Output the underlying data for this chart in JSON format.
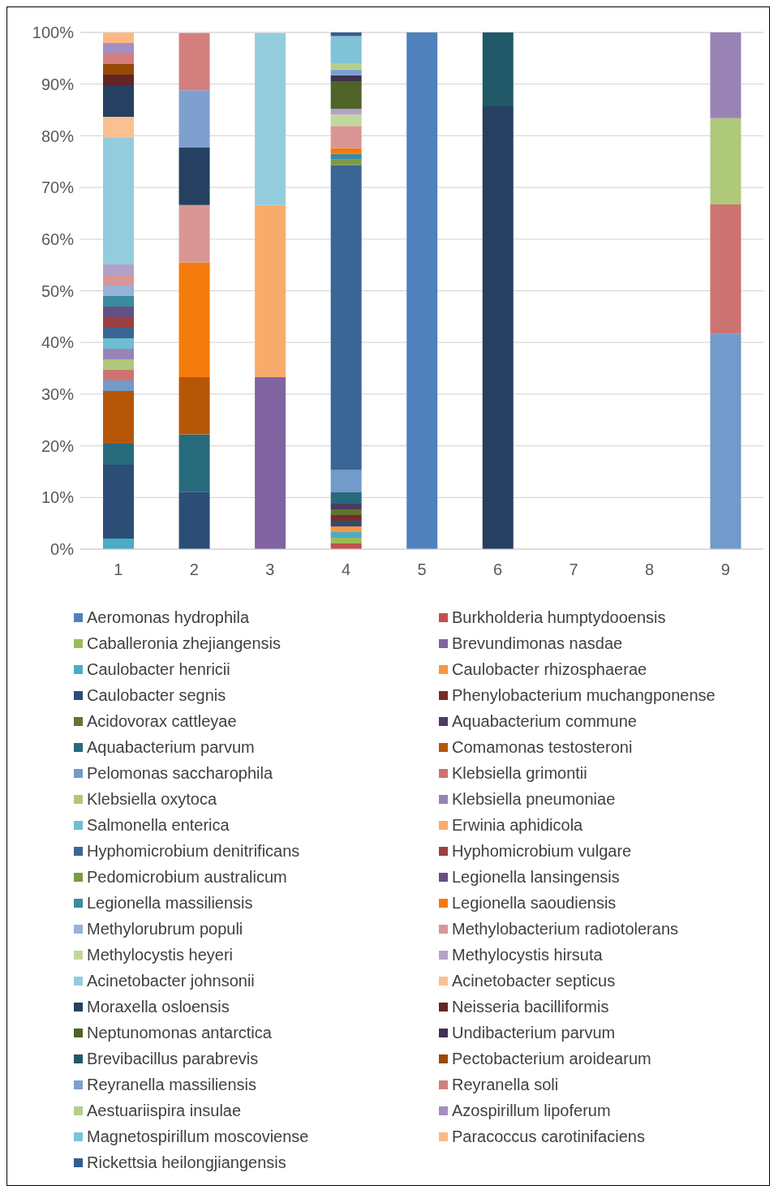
{
  "chart_data": {
    "type": "bar",
    "stacked": true,
    "categories": [
      "1",
      "2",
      "3",
      "4",
      "5",
      "6",
      "7",
      "8",
      "9"
    ],
    "ylim": [
      0,
      100
    ],
    "yticks": [
      {
        "value": 0,
        "label": "0%"
      },
      {
        "value": 10,
        "label": "10%"
      },
      {
        "value": 20,
        "label": "20%"
      },
      {
        "value": 30,
        "label": "30%"
      },
      {
        "value": 40,
        "label": "40%"
      },
      {
        "value": 50,
        "label": "50%"
      },
      {
        "value": 60,
        "label": "60%"
      },
      {
        "value": 70,
        "label": "70%"
      },
      {
        "value": 80,
        "label": "80%"
      },
      {
        "value": 90,
        "label": "90%"
      },
      {
        "value": 100,
        "label": "100%"
      }
    ],
    "grid": "y",
    "legend": "bottom",
    "series": [
      {
        "name": "Aeromonas hydrophila",
        "color": "#4f81bd",
        "values": [
          null,
          null,
          null,
          null,
          100,
          null,
          null,
          null,
          null
        ]
      },
      {
        "name": "Burkholderia humptydooensis",
        "color": "#c0504d",
        "values": [
          null,
          null,
          null,
          1.1,
          null,
          null,
          null,
          null,
          null
        ]
      },
      {
        "name": "Caballeronia zhejiangensis",
        "color": "#9bbb59",
        "values": [
          null,
          null,
          null,
          1.1,
          null,
          null,
          null,
          null,
          null
        ]
      },
      {
        "name": "Brevundimonas nasdae",
        "color": "#8064a2",
        "values": [
          null,
          null,
          33.3,
          null,
          null,
          null,
          null,
          null,
          null
        ]
      },
      {
        "name": "Caulobacter henricii",
        "color": "#4bacc6",
        "values": [
          2.04,
          null,
          null,
          1.1,
          null,
          null,
          null,
          null,
          null
        ]
      },
      {
        "name": "Caulobacter rhizosphaerae",
        "color": "#f79646",
        "values": [
          null,
          null,
          null,
          1.1,
          null,
          null,
          null,
          null,
          null
        ]
      },
      {
        "name": "Caulobacter segnis",
        "color": "#2c4d75",
        "values": [
          14.29,
          11.1,
          null,
          1.1,
          null,
          null,
          null,
          null,
          null
        ]
      },
      {
        "name": "Phenylobacterium muchangponense",
        "color": "#772c2a",
        "values": [
          null,
          null,
          null,
          1.1,
          null,
          null,
          null,
          null,
          null
        ]
      },
      {
        "name": "Acidovorax cattleyae",
        "color": "#5f7530",
        "values": [
          null,
          null,
          null,
          1.1,
          null,
          null,
          null,
          null,
          null
        ]
      },
      {
        "name": "Aquabacterium commune",
        "color": "#4d3b62",
        "values": [
          null,
          null,
          null,
          1.1,
          null,
          null,
          null,
          null,
          null
        ]
      },
      {
        "name": "Aquabacterium parvum",
        "color": "#276a7c",
        "values": [
          4.08,
          11.1,
          null,
          2.2,
          null,
          null,
          null,
          null,
          null
        ]
      },
      {
        "name": "Comamonas testosteroni",
        "color": "#b65708",
        "values": [
          10.2,
          11.1,
          null,
          null,
          null,
          null,
          null,
          null,
          null
        ]
      },
      {
        "name": "Pelomonas saccharophila",
        "color": "#729aca",
        "values": [
          2.04,
          null,
          null,
          4.3,
          null,
          null,
          null,
          null,
          41.7
        ]
      },
      {
        "name": "Klebsiella grimontii",
        "color": "#cd7371",
        "values": [
          2.04,
          null,
          null,
          null,
          null,
          null,
          null,
          null,
          25.0
        ]
      },
      {
        "name": "Klebsiella oxytoca",
        "color": "#afc97a",
        "values": [
          2.04,
          null,
          null,
          null,
          null,
          null,
          null,
          null,
          16.7
        ]
      },
      {
        "name": "Klebsiella pneumoniae",
        "color": "#9983b5",
        "values": [
          2.04,
          null,
          null,
          null,
          null,
          null,
          null,
          null,
          16.7
        ]
      },
      {
        "name": "Salmonella enterica",
        "color": "#6fbdd1",
        "values": [
          2.04,
          null,
          null,
          null,
          null,
          null,
          null,
          null,
          null
        ]
      },
      {
        "name": "Erwinia aphidicola",
        "color": "#f9ab6b",
        "values": [
          null,
          null,
          33.3,
          null,
          null,
          null,
          null,
          null,
          null
        ]
      },
      {
        "name": "Hyphomicrobium denitrificans",
        "color": "#3a6595",
        "values": [
          2.04,
          null,
          null,
          59.0,
          null,
          null,
          null,
          null,
          null
        ]
      },
      {
        "name": "Hyphomicrobium vulgare",
        "color": "#9c403e",
        "values": [
          2.04,
          null,
          null,
          null,
          null,
          null,
          null,
          null,
          null
        ]
      },
      {
        "name": "Pedomicrobium australicum",
        "color": "#7d9847",
        "values": [
          null,
          null,
          null,
          1.1,
          null,
          null,
          null,
          null,
          null
        ]
      },
      {
        "name": "Legionella lansingensis",
        "color": "#664f83",
        "values": [
          2.04,
          null,
          null,
          null,
          null,
          null,
          null,
          null,
          null
        ]
      },
      {
        "name": "Legionella massiliensis",
        "color": "#3b8ba0",
        "values": [
          2.04,
          null,
          null,
          1.1,
          null,
          null,
          null,
          null,
          null
        ]
      },
      {
        "name": "Legionella saoudiensis",
        "color": "#f57a0c",
        "values": [
          null,
          22.2,
          null,
          1.1,
          null,
          null,
          null,
          null,
          null
        ]
      },
      {
        "name": "Methylorubrum populi",
        "color": "#95b3d7",
        "values": [
          2.04,
          null,
          null,
          null,
          null,
          null,
          null,
          null,
          null
        ]
      },
      {
        "name": "Methylobacterium radiotolerans",
        "color": "#d99694",
        "values": [
          2.04,
          11.1,
          null,
          4.3,
          null,
          null,
          null,
          null,
          null
        ]
      },
      {
        "name": "Methylocystis heyeri",
        "color": "#c3d69b",
        "values": [
          null,
          null,
          null,
          2.2,
          null,
          null,
          null,
          null,
          null
        ]
      },
      {
        "name": "Methylocystis hirsuta",
        "color": "#b2a2c7",
        "values": [
          2.04,
          null,
          null,
          1.1,
          null,
          null,
          null,
          null,
          null
        ]
      },
      {
        "name": "Acinetobacter johnsonii",
        "color": "#93cddd",
        "values": [
          24.49,
          null,
          33.3,
          null,
          null,
          null,
          null,
          null,
          null
        ]
      },
      {
        "name": "Acinetobacter septicus",
        "color": "#fac090",
        "values": [
          4.08,
          null,
          null,
          null,
          null,
          null,
          null,
          null,
          null
        ]
      },
      {
        "name": "Moraxella osloensis",
        "color": "#254061",
        "values": [
          6.12,
          11.1,
          null,
          null,
          null,
          85.7,
          null,
          null,
          null
        ]
      },
      {
        "name": "Neisseria bacilliformis",
        "color": "#632523",
        "values": [
          2.04,
          null,
          null,
          null,
          null,
          null,
          null,
          null,
          null
        ]
      },
      {
        "name": "Neptunomonas antarctica",
        "color": "#4f6228",
        "values": [
          null,
          null,
          null,
          5.4,
          null,
          null,
          null,
          null,
          null
        ]
      },
      {
        "name": "Undibacterium parvum",
        "color": "#3f3151",
        "values": [
          null,
          null,
          null,
          1.1,
          null,
          null,
          null,
          null,
          null
        ]
      },
      {
        "name": "Brevibacillus parabrevis",
        "color": "#215968",
        "values": [
          null,
          null,
          null,
          null,
          null,
          14.3,
          null,
          null,
          null
        ]
      },
      {
        "name": "Pectobacterium aroidearum",
        "color": "#984807",
        "values": [
          2.04,
          null,
          null,
          null,
          null,
          null,
          null,
          null,
          null
        ]
      },
      {
        "name": "Reyranella massiliensis",
        "color": "#7f9fcf",
        "values": [
          null,
          11.1,
          null,
          1.1,
          null,
          null,
          null,
          null,
          null
        ]
      },
      {
        "name": "Reyranella soli",
        "color": "#d37f7d",
        "values": [
          2.04,
          11.1,
          null,
          null,
          null,
          null,
          null,
          null,
          null
        ]
      },
      {
        "name": "Aestuariispira insulae",
        "color": "#b3cf88",
        "values": [
          null,
          null,
          null,
          1.1,
          null,
          null,
          null,
          null,
          null
        ]
      },
      {
        "name": "Azospirillum lipoferum",
        "color": "#a48fc0",
        "values": [
          2.04,
          null,
          null,
          null,
          null,
          null,
          null,
          null,
          null
        ]
      },
      {
        "name": "Magnetospirillum moscoviense",
        "color": "#80c2d6",
        "values": [
          null,
          null,
          null,
          5.4,
          null,
          null,
          null,
          null,
          null
        ]
      },
      {
        "name": "Paracoccus carotinifaciens",
        "color": "#fbb885",
        "values": [
          2.04,
          null,
          null,
          null,
          null,
          null,
          null,
          null,
          null
        ]
      },
      {
        "name": "Rickettsia heilongjiangensis",
        "color": "#335d8f",
        "values": [
          null,
          null,
          null,
          1.1,
          null,
          null,
          null,
          null,
          null
        ]
      }
    ]
  }
}
